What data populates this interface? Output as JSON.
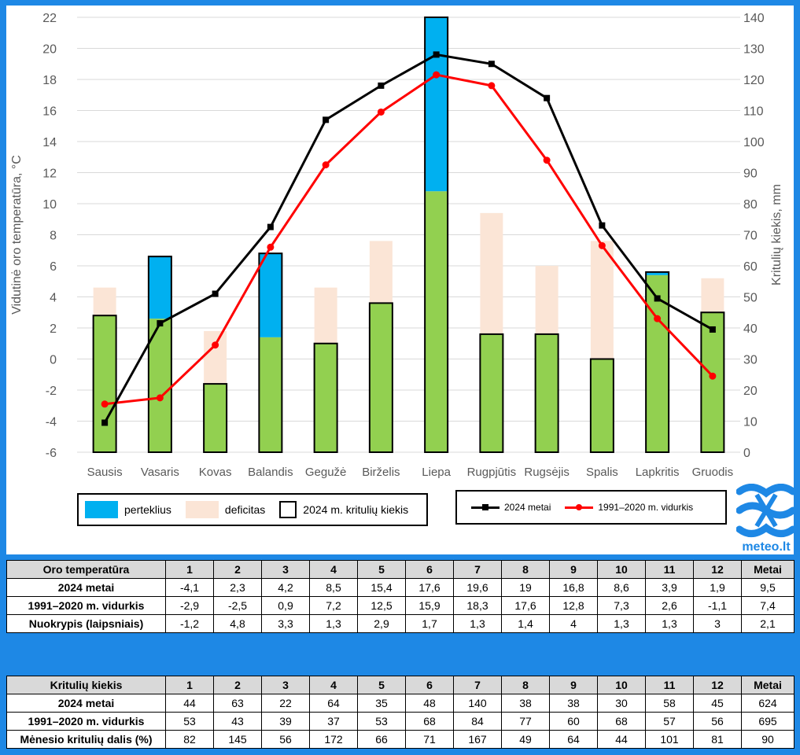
{
  "chart_data": {
    "type": "bar+line",
    "categories": [
      "Sausis",
      "Vasaris",
      "Kovas",
      "Balandis",
      "Gegužė",
      "Birželis",
      "Liepa",
      "Rugpjūtis",
      "Rugsėjis",
      "Spalis",
      "Lapkritis",
      "Gruodis"
    ],
    "y_left": {
      "label": "Vidutinė oro temperatūra, °C",
      "range": [
        -6,
        22
      ],
      "ticks": [
        "22",
        "20",
        "18",
        "16",
        "14",
        "12",
        "10",
        "8",
        "6",
        "4",
        "2",
        "0",
        "-2",
        "-4",
        "-6"
      ]
    },
    "y_right": {
      "label": "Kritulių kiekis, mm",
      "range": [
        0,
        140
      ],
      "ticks": [
        "140",
        "130",
        "120",
        "110",
        "100",
        "90",
        "80",
        "70",
        "60",
        "50",
        "40",
        "30",
        "20",
        "10",
        "0"
      ]
    },
    "precip_2024": [
      44,
      63,
      22,
      64,
      35,
      48,
      140,
      38,
      38,
      30,
      58,
      45
    ],
    "precip_normal": [
      53,
      43,
      39,
      37,
      53,
      68,
      84,
      77,
      60,
      68,
      57,
      56
    ],
    "temp_2024": [
      -4.1,
      2.3,
      4.2,
      8.5,
      15.4,
      17.6,
      19.6,
      19,
      16.8,
      8.6,
      3.9,
      1.9
    ],
    "temp_normal": [
      -2.9,
      -2.5,
      0.9,
      7.2,
      12.5,
      15.9,
      18.3,
      17.6,
      12.8,
      7.3,
      2.6,
      -1.1
    ],
    "grid": true,
    "colors": {
      "green": "#92d050",
      "blue": "#00b0f0",
      "peach": "#fbe5d6",
      "black_line": "#000000",
      "red_line": "#ff0000"
    }
  },
  "legend1": {
    "excess": "perteklius",
    "deficit": "deficitas",
    "total": "2024 m. kritulių kiekis"
  },
  "legend2": {
    "series_2024": "2024 metai",
    "series_normal": "1991–2020 m. vidurkis"
  },
  "logo": {
    "text": "meteo.lt"
  },
  "temp_table": {
    "header": [
      "Oro temperatūra",
      "1",
      "2",
      "3",
      "4",
      "5",
      "6",
      "7",
      "8",
      "9",
      "10",
      "11",
      "12",
      "Metai"
    ],
    "rows": [
      [
        "2024 metai",
        "-4,1",
        "2,3",
        "4,2",
        "8,5",
        "15,4",
        "17,6",
        "19,6",
        "19",
        "16,8",
        "8,6",
        "3,9",
        "1,9",
        "9,5"
      ],
      [
        "1991–2020 m. vidurkis",
        "-2,9",
        "-2,5",
        "0,9",
        "7,2",
        "12,5",
        "15,9",
        "18,3",
        "17,6",
        "12,8",
        "7,3",
        "2,6",
        "-1,1",
        "7,4"
      ],
      [
        "Nuokrypis (laipsniais)",
        "-1,2",
        "4,8",
        "3,3",
        "1,3",
        "2,9",
        "1,7",
        "1,3",
        "1,4",
        "4",
        "1,3",
        "1,3",
        "3",
        "2,1"
      ]
    ]
  },
  "precip_table": {
    "header": [
      "Kritulių kiekis",
      "1",
      "2",
      "3",
      "4",
      "5",
      "6",
      "7",
      "8",
      "9",
      "10",
      "11",
      "12",
      "Metai"
    ],
    "rows": [
      [
        "2024 metai",
        "44",
        "63",
        "22",
        "64",
        "35",
        "48",
        "140",
        "38",
        "38",
        "30",
        "58",
        "45",
        "624"
      ],
      [
        "1991–2020 m. vidurkis",
        "53",
        "43",
        "39",
        "37",
        "53",
        "68",
        "84",
        "77",
        "60",
        "68",
        "57",
        "56",
        "695"
      ],
      [
        "Mėnesio kritulių dalis (%)",
        "82",
        "145",
        "56",
        "172",
        "66",
        "71",
        "167",
        "49",
        "64",
        "44",
        "101",
        "81",
        "90"
      ]
    ]
  }
}
